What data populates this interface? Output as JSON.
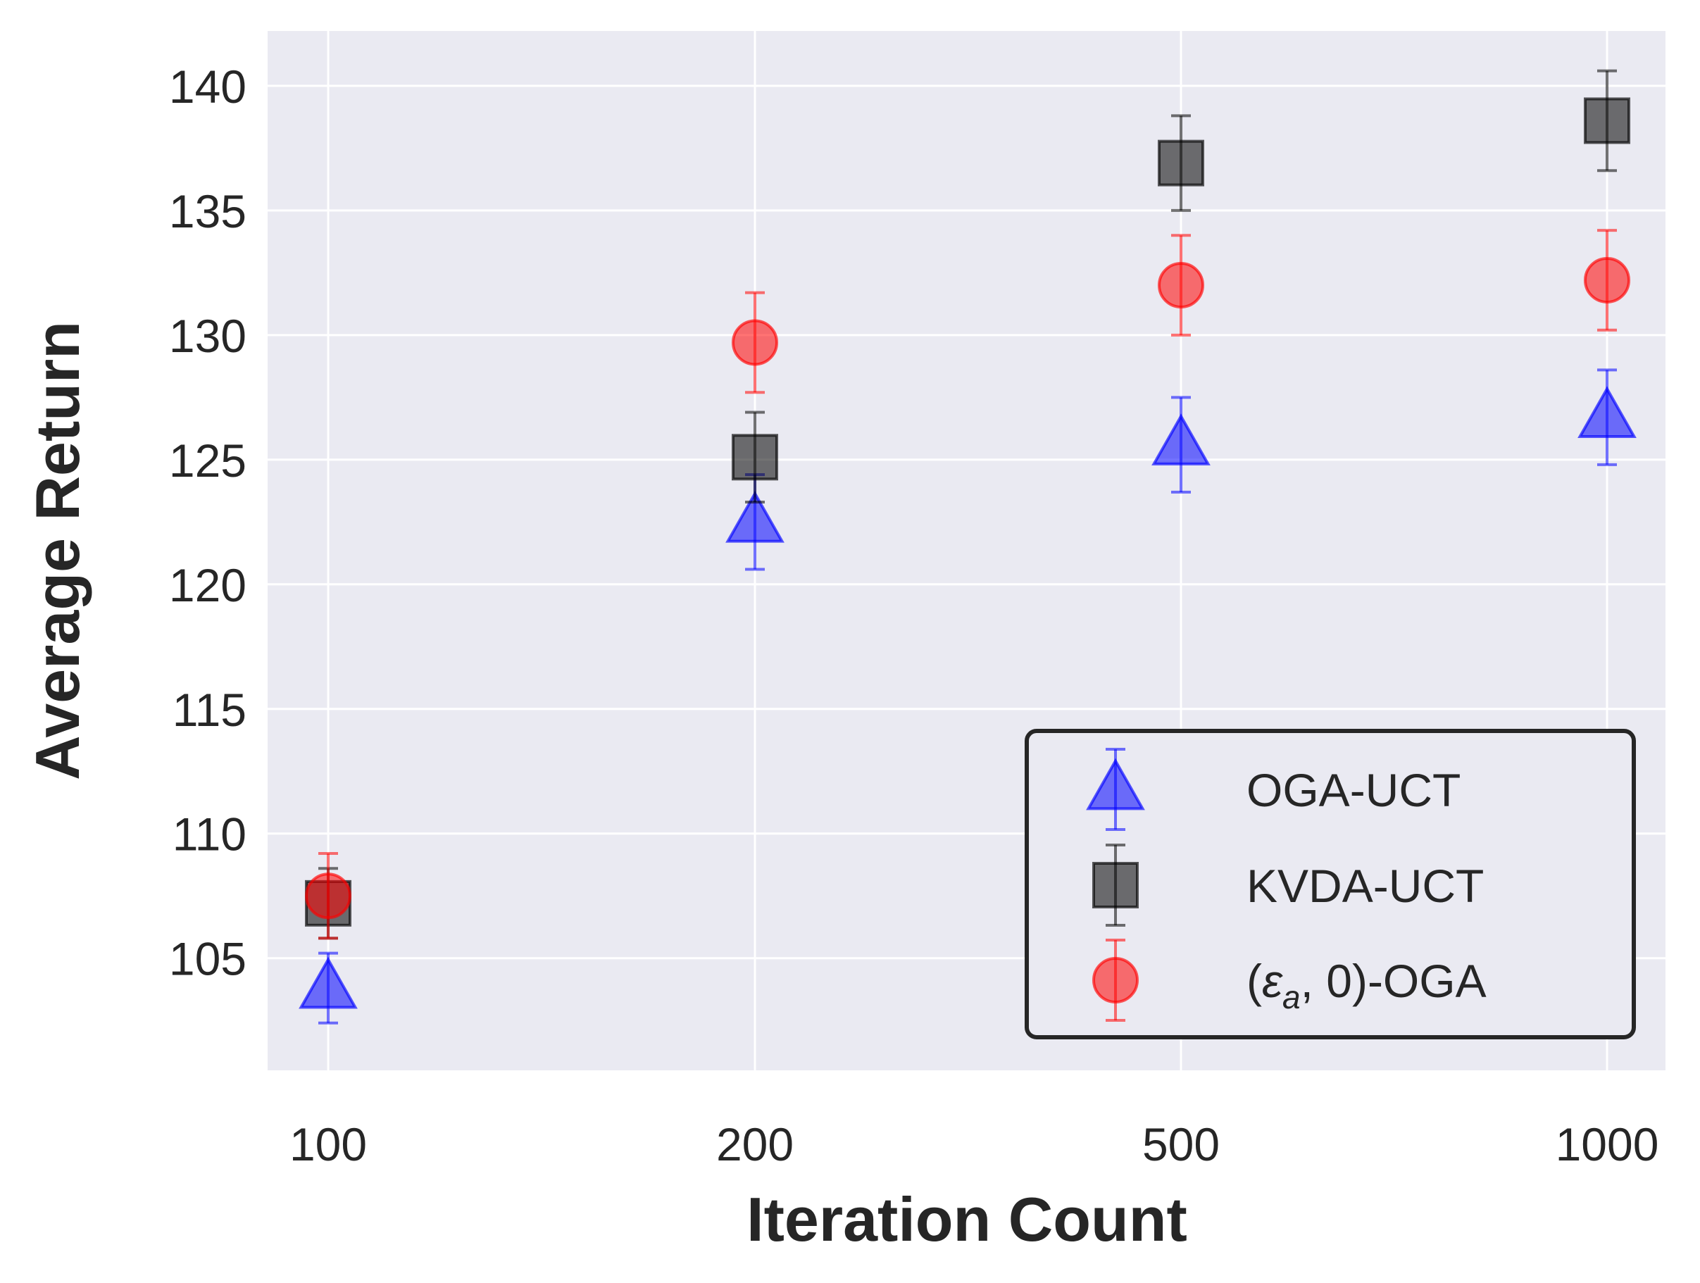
{
  "chart_data": {
    "type": "scatter",
    "xlabel": "Iteration Count",
    "ylabel": "Average Return",
    "categories": [
      "100",
      "200",
      "500",
      "1000"
    ],
    "ylim": [
      100.5,
      142.2
    ],
    "yticks": [
      105,
      110,
      115,
      120,
      125,
      130,
      135,
      140
    ],
    "ytick_labels": [
      "105",
      "110",
      "115",
      "120",
      "125",
      "130",
      "135",
      "140"
    ],
    "grid": true,
    "legend_position": "lower right",
    "series": [
      {
        "name": "OGA-UCT",
        "label_parts": [
          "OGA-UCT"
        ],
        "marker": "triangle",
        "color": "#0000ff",
        "values": [
          103.8,
          122.5,
          125.6,
          126.7
        ],
        "errors": [
          1.4,
          1.9,
          1.9,
          1.9
        ]
      },
      {
        "name": "KVDA-UCT",
        "label_parts": [
          "KVDA-UCT"
        ],
        "marker": "square",
        "color": "#000000",
        "values": [
          107.2,
          125.1,
          136.9,
          138.6
        ],
        "errors": [
          1.4,
          1.8,
          1.9,
          2.0
        ]
      },
      {
        "name": "(ε_a, 0)-OGA",
        "label_parts": [
          "(",
          "ε",
          "a",
          ", 0)-OGA"
        ],
        "marker": "circle",
        "color": "#ff0000",
        "values": [
          107.5,
          129.7,
          132.0,
          132.2
        ],
        "errors": [
          1.7,
          2.0,
          2.0,
          2.0
        ]
      }
    ]
  }
}
